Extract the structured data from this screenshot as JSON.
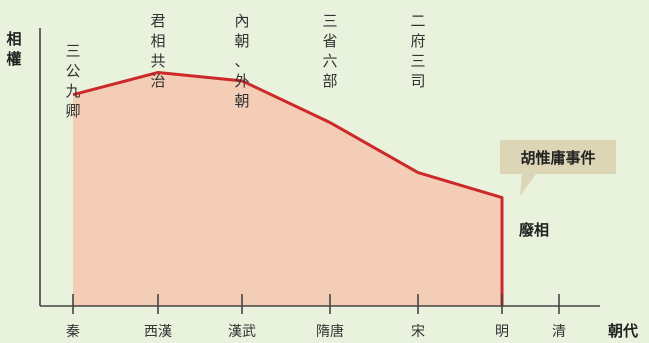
{
  "colors": {
    "background": "#e8f2dc",
    "area": "#f4cdb6",
    "line": "#cc2a2a",
    "axis": "#444444",
    "callout": "#dcd5b6"
  },
  "chart_data": {
    "type": "area",
    "ylabel": "相權",
    "xlabel": "朝代",
    "categories": [
      "秦",
      "西漢",
      "漢武",
      "隋唐",
      "宋",
      "明",
      "清"
    ],
    "points": [
      {
        "x": "秦",
        "y": 0.76
      },
      {
        "x": "西漢",
        "y": 0.84
      },
      {
        "x": "漢武",
        "y": 0.81
      },
      {
        "x": "隋唐",
        "y": 0.66
      },
      {
        "x": "宋",
        "y": 0.48
      },
      {
        "x": "明",
        "y": 0.39
      },
      {
        "x": "明",
        "y": 0.0
      }
    ],
    "ylim": [
      0,
      1
    ],
    "grid": false,
    "annotations": [
      {
        "text": "三公九卿",
        "at": "秦"
      },
      {
        "text": "君相共治",
        "at": "西漢"
      },
      {
        "text": "內朝、外朝",
        "at": "漢武"
      },
      {
        "text": "三省六部",
        "at": "隋唐"
      },
      {
        "text": "二府三司",
        "at": "宋"
      }
    ],
    "callout": {
      "text": "胡惟庸事件",
      "at": "明"
    },
    "end_label": {
      "text": "廢相",
      "at": "明"
    }
  }
}
